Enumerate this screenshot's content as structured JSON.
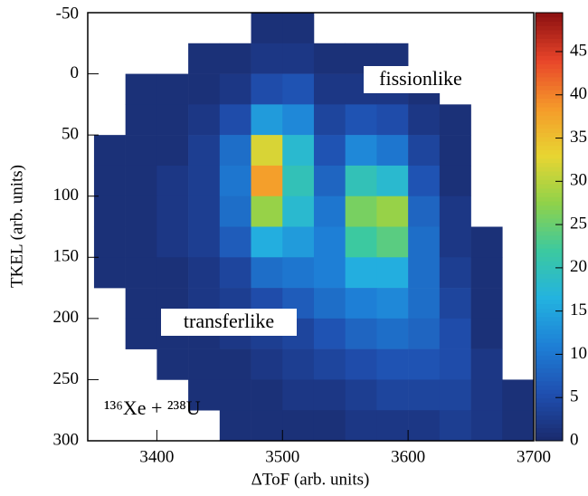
{
  "chart_data": {
    "type": "heatmap",
    "x_label": "ΔToF (arb. units)",
    "y_label": "TKEL (arb. units)",
    "annotations": [
      "fissionlike",
      "transferlike",
      "¹³⁶Xe + ²³⁸U"
    ],
    "xlim": [
      3345,
      3700
    ],
    "xticks": [
      3400,
      3500,
      3600,
      3700
    ],
    "ylim": [
      -50,
      300
    ],
    "y_inverted": true,
    "yticks": [
      -50,
      0,
      50,
      100,
      150,
      200,
      250,
      300
    ],
    "zlim": [
      0,
      49.5
    ],
    "zticks": [
      0,
      5,
      10,
      15,
      20,
      25,
      30,
      35,
      40,
      45
    ],
    "colormap": [
      "#1a2a6c",
      "#1f4fb0",
      "#1e7fd6",
      "#23b3e0",
      "#3cc9a0",
      "#8fd24a",
      "#e8d532",
      "#f59a2a",
      "#e8452a",
      "#8b1010"
    ],
    "x_bins": [
      3350,
      3375,
      3400,
      3425,
      3450,
      3475,
      3500,
      3525,
      3550,
      3575,
      3600,
      3625,
      3650,
      3675,
      3700
    ],
    "y_bins": [
      -50,
      -25,
      0,
      25,
      50,
      75,
      100,
      125,
      150,
      175,
      200,
      225,
      250,
      275,
      300
    ],
    "z": [
      [
        0,
        0,
        0,
        0,
        0,
        1,
        1,
        0,
        0,
        0,
        0,
        0,
        0,
        0
      ],
      [
        0,
        0,
        0,
        1,
        1,
        2,
        2,
        1,
        1,
        1,
        0,
        0,
        0,
        0
      ],
      [
        0,
        1,
        1,
        1,
        2,
        5,
        6,
        2,
        2,
        2,
        1,
        0,
        0,
        0
      ],
      [
        0,
        1,
        1,
        2,
        5,
        14,
        12,
        4,
        6,
        5,
        2,
        1,
        0,
        0
      ],
      [
        1,
        1,
        1,
        3,
        9,
        32,
        18,
        6,
        12,
        10,
        4,
        1,
        0,
        0
      ],
      [
        1,
        1,
        2,
        3,
        10,
        38,
        20,
        8,
        20,
        18,
        6,
        1,
        0,
        0
      ],
      [
        1,
        1,
        2,
        3,
        9,
        28,
        18,
        10,
        26,
        28,
        8,
        2,
        0,
        0
      ],
      [
        1,
        1,
        2,
        3,
        7,
        16,
        14,
        11,
        22,
        24,
        9,
        2,
        1,
        0
      ],
      [
        1,
        1,
        1,
        2,
        4,
        9,
        10,
        11,
        16,
        16,
        9,
        3,
        1,
        0
      ],
      [
        0,
        1,
        1,
        2,
        3,
        5,
        7,
        9,
        11,
        12,
        9,
        4,
        1,
        0
      ],
      [
        0,
        1,
        1,
        1,
        2,
        3,
        4,
        6,
        8,
        9,
        8,
        5,
        1,
        0
      ],
      [
        0,
        0,
        1,
        1,
        1,
        2,
        3,
        4,
        5,
        6,
        6,
        5,
        2,
        0
      ],
      [
        0,
        0,
        0,
        1,
        1,
        1,
        2,
        2,
        3,
        4,
        4,
        4,
        2,
        1
      ],
      [
        0,
        0,
        0,
        0,
        1,
        1,
        1,
        1,
        2,
        2,
        2,
        3,
        2,
        1
      ]
    ]
  }
}
